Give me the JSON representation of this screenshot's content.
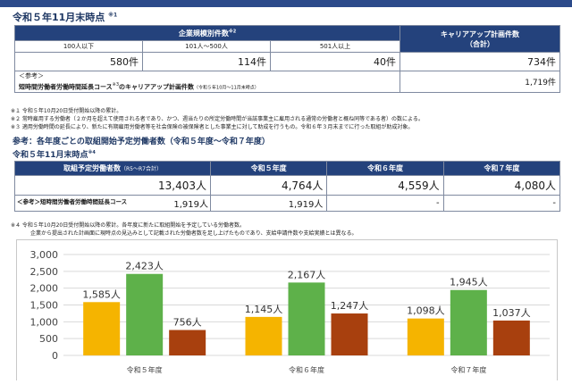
{
  "header": {
    "title": "令和５年11月末時点",
    "title_mark": "※1"
  },
  "table1": {
    "group_header": "企業規模別件数",
    "group_mark": "※2",
    "right_header_line1": "キャリアアップ計画件数",
    "right_header_line2": "（合計）",
    "cols": [
      "100人以下",
      "101人～500人",
      "501人以上"
    ],
    "values": [
      "580件",
      "114件",
      "40件"
    ],
    "total": "734件",
    "ref_line1": "＜参考＞",
    "ref_line2_a": "短時間労働者労働時間延長コース",
    "ref_mark": "※3",
    "ref_line2_b": "のキャリアアップ計画件数",
    "ref_period": "（令和５年10月～11月末時点）",
    "ref_value": "1,719件"
  },
  "notes1": [
    "※１ 令和５年10月20日受付開始以降の累計。",
    "※２ 常時雇用する労働者（２か月を超えて使用される者であり、かつ、週当たりの所定労働時間が当該事業主に雇用される通常の労働者と概ね同等である者）の数による。",
    "※３ 適用労働時間の延長により、新たに有期雇用労働者等を社会保険の被保険者とした事業主に対して助成を行うもの。令和６年３月末までに行った取組が助成対象。"
  ],
  "section2": {
    "title": "参考：各年度ごとの取組開始予定労働者数（令和５年度～令和７年度）",
    "subtitle": "令和５年11月末時点",
    "subtitle_mark": "※4"
  },
  "table2": {
    "headers": [
      "取組予定労働者数",
      "（R5～R7合計）",
      "令和５年度",
      "令和６年度",
      "令和７年度"
    ],
    "row1": [
      "13,403人",
      "4,764人",
      "4,559人",
      "4,080人"
    ],
    "row2_label": "＜参考＞短時間労働者労働時間延長コース",
    "row2": [
      "1,919人",
      "1,919人",
      "-",
      "-"
    ]
  },
  "notes2": [
    "※４ 令和５年10月20日受付開始以降の累計。各年度に新たに取組開始を予定している労働者数。",
    "企業から提出された計画面に現時点の見込みとして記載された労働者数を足し上げたものであり、支給申請件数や支給実績とは異なる。"
  ],
  "chart_data": {
    "type": "bar",
    "categories": [
      "令和５年度",
      "令和６年度",
      "令和７年度"
    ],
    "series": [
      {
        "values": [
          1585,
          1145,
          1098
        ],
        "color": "#f5b400"
      },
      {
        "values": [
          2423,
          2167,
          1945
        ],
        "color": "#5eb14a"
      },
      {
        "values": [
          756,
          1247,
          1037
        ],
        "color": "#a8400e"
      }
    ],
    "data_labels": [
      [
        "1,585人",
        "2,423人",
        "756人"
      ],
      [
        "1,145人",
        "2,167人",
        "1,247人"
      ],
      [
        "1,098人",
        "1,945人",
        "1,037人"
      ]
    ],
    "yticks": [
      "0",
      "500",
      "1,000",
      "1,500",
      "2,000",
      "2,500",
      "3,000"
    ],
    "ylim": [
      0,
      3000
    ],
    "grid": true
  }
}
